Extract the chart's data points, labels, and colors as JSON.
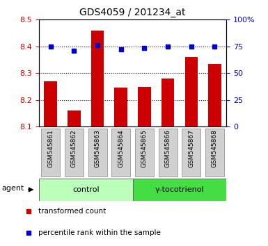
{
  "title": "GDS4059 / 201234_at",
  "samples": [
    "GSM545861",
    "GSM545862",
    "GSM545863",
    "GSM545864",
    "GSM545865",
    "GSM545866",
    "GSM545867",
    "GSM545868"
  ],
  "bar_values": [
    8.27,
    8.16,
    8.46,
    8.245,
    8.25,
    8.28,
    8.36,
    8.335
  ],
  "dot_values": [
    75.0,
    71.0,
    76.0,
    72.0,
    73.5,
    75.0,
    75.0,
    75.0
  ],
  "bar_color": "#cc0000",
  "dot_color": "#0000cc",
  "ylim_left": [
    8.1,
    8.5
  ],
  "ylim_right": [
    0,
    100
  ],
  "yticks_left": [
    8.1,
    8.2,
    8.3,
    8.4,
    8.5
  ],
  "yticks_right": [
    0,
    25,
    50,
    75,
    100
  ],
  "ytick_labels_right": [
    "0",
    "25",
    "50",
    "75",
    "100%"
  ],
  "groups": [
    {
      "label": "control",
      "color": "#bbffbb"
    },
    {
      "label": "γ-tocotrienol",
      "color": "#44dd44"
    }
  ],
  "agent_label": "agent",
  "legend_items": [
    {
      "label": "transformed count",
      "color": "#cc0000"
    },
    {
      "label": "percentile rank within the sample",
      "color": "#0000cc"
    }
  ],
  "bar_width": 0.55,
  "tick_label_color_left": "#cc0000",
  "tick_label_color_right": "#0000cc",
  "sample_box_color": "#d0d0d0"
}
